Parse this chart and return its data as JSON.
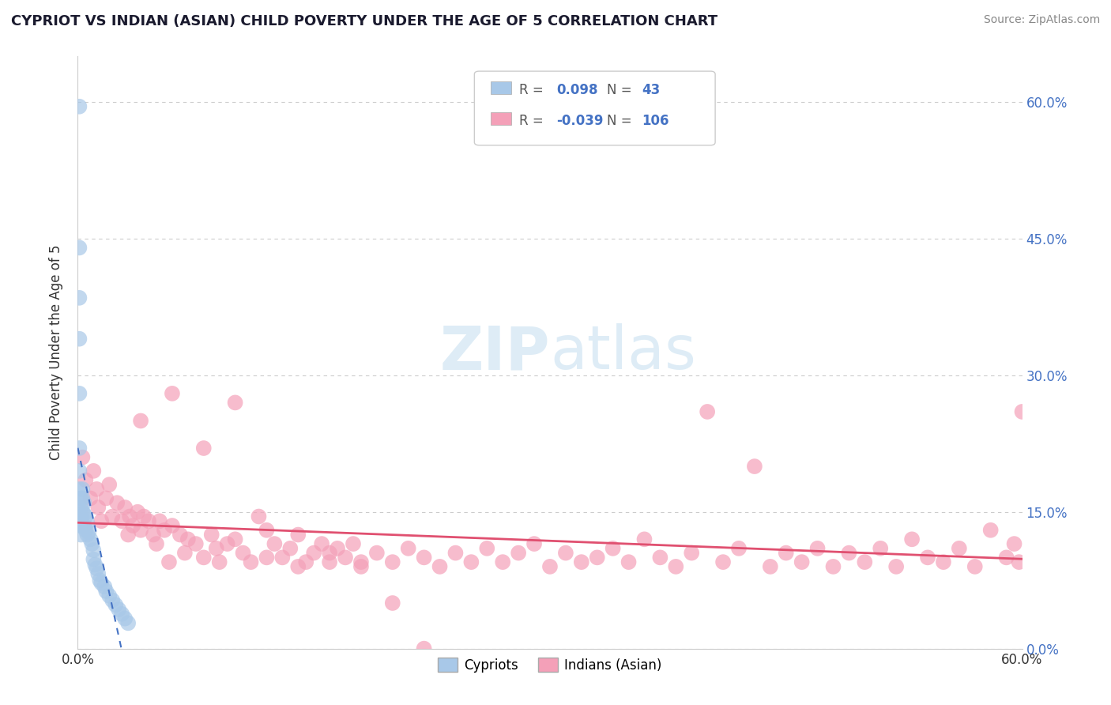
{
  "title": "CYPRIOT VS INDIAN (ASIAN) CHILD POVERTY UNDER THE AGE OF 5 CORRELATION CHART",
  "source": "Source: ZipAtlas.com",
  "ylabel": "Child Poverty Under the Age of 5",
  "cypriot_R": 0.098,
  "cypriot_N": 43,
  "indian_R": -0.039,
  "indian_N": 106,
  "cypriot_color": "#a8c8e8",
  "cypriot_line_color": "#4472c4",
  "indian_color": "#f4a0b8",
  "indian_line_color": "#e05070",
  "background_color": "#ffffff",
  "grid_color": "#cccccc",
  "ytick_color": "#4472c4",
  "watermark_color": "#d0e8f5",
  "ytick_vals": [
    0.0,
    0.15,
    0.3,
    0.45,
    0.6
  ],
  "ytick_labels": [
    "0.0%",
    "15.0%",
    "30.0%",
    "45.0%",
    "60.0%"
  ],
  "xlim": [
    0.0,
    0.6
  ],
  "ylim": [
    0.0,
    0.65
  ],
  "cypriot_x": [
    0.001,
    0.001,
    0.001,
    0.001,
    0.001,
    0.001,
    0.001,
    0.001,
    0.002,
    0.002,
    0.002,
    0.002,
    0.002,
    0.003,
    0.003,
    0.003,
    0.003,
    0.004,
    0.004,
    0.004,
    0.005,
    0.005,
    0.006,
    0.006,
    0.007,
    0.008,
    0.009,
    0.01,
    0.01,
    0.011,
    0.012,
    0.013,
    0.014,
    0.015,
    0.017,
    0.018,
    0.02,
    0.022,
    0.024,
    0.026,
    0.028,
    0.03,
    0.032
  ],
  "cypriot_y": [
    0.595,
    0.44,
    0.385,
    0.34,
    0.28,
    0.22,
    0.195,
    0.175,
    0.165,
    0.155,
    0.145,
    0.135,
    0.125,
    0.175,
    0.165,
    0.15,
    0.135,
    0.16,
    0.148,
    0.135,
    0.145,
    0.13,
    0.138,
    0.125,
    0.128,
    0.12,
    0.115,
    0.108,
    0.098,
    0.092,
    0.088,
    0.082,
    0.075,
    0.072,
    0.068,
    0.063,
    0.058,
    0.053,
    0.048,
    0.043,
    0.038,
    0.033,
    0.028
  ],
  "indian_x": [
    0.003,
    0.005,
    0.008,
    0.01,
    0.012,
    0.013,
    0.015,
    0.018,
    0.02,
    0.022,
    0.025,
    0.028,
    0.03,
    0.032,
    0.033,
    0.035,
    0.038,
    0.04,
    0.042,
    0.045,
    0.048,
    0.05,
    0.052,
    0.055,
    0.058,
    0.06,
    0.065,
    0.068,
    0.07,
    0.075,
    0.08,
    0.085,
    0.088,
    0.09,
    0.095,
    0.1,
    0.105,
    0.11,
    0.115,
    0.12,
    0.125,
    0.13,
    0.135,
    0.14,
    0.145,
    0.15,
    0.155,
    0.16,
    0.165,
    0.17,
    0.175,
    0.18,
    0.19,
    0.2,
    0.21,
    0.22,
    0.23,
    0.24,
    0.25,
    0.26,
    0.27,
    0.28,
    0.29,
    0.3,
    0.31,
    0.32,
    0.33,
    0.34,
    0.35,
    0.36,
    0.37,
    0.38,
    0.39,
    0.4,
    0.41,
    0.42,
    0.43,
    0.44,
    0.45,
    0.46,
    0.47,
    0.48,
    0.49,
    0.5,
    0.51,
    0.52,
    0.53,
    0.54,
    0.55,
    0.56,
    0.57,
    0.58,
    0.59,
    0.595,
    0.598,
    0.6,
    0.04,
    0.06,
    0.08,
    0.1,
    0.12,
    0.14,
    0.16,
    0.18,
    0.2,
    0.22
  ],
  "indian_y": [
    0.21,
    0.185,
    0.165,
    0.195,
    0.175,
    0.155,
    0.14,
    0.165,
    0.18,
    0.145,
    0.16,
    0.14,
    0.155,
    0.125,
    0.145,
    0.135,
    0.15,
    0.13,
    0.145,
    0.14,
    0.125,
    0.115,
    0.14,
    0.13,
    0.095,
    0.135,
    0.125,
    0.105,
    0.12,
    0.115,
    0.1,
    0.125,
    0.11,
    0.095,
    0.115,
    0.12,
    0.105,
    0.095,
    0.145,
    0.13,
    0.115,
    0.1,
    0.11,
    0.125,
    0.095,
    0.105,
    0.115,
    0.095,
    0.11,
    0.1,
    0.115,
    0.09,
    0.105,
    0.095,
    0.11,
    0.1,
    0.09,
    0.105,
    0.095,
    0.11,
    0.095,
    0.105,
    0.115,
    0.09,
    0.105,
    0.095,
    0.1,
    0.11,
    0.095,
    0.12,
    0.1,
    0.09,
    0.105,
    0.26,
    0.095,
    0.11,
    0.2,
    0.09,
    0.105,
    0.095,
    0.11,
    0.09,
    0.105,
    0.095,
    0.11,
    0.09,
    0.12,
    0.1,
    0.095,
    0.11,
    0.09,
    0.13,
    0.1,
    0.115,
    0.095,
    0.26,
    0.25,
    0.28,
    0.22,
    0.27,
    0.1,
    0.09,
    0.105,
    0.095,
    0.05,
    0.0
  ]
}
